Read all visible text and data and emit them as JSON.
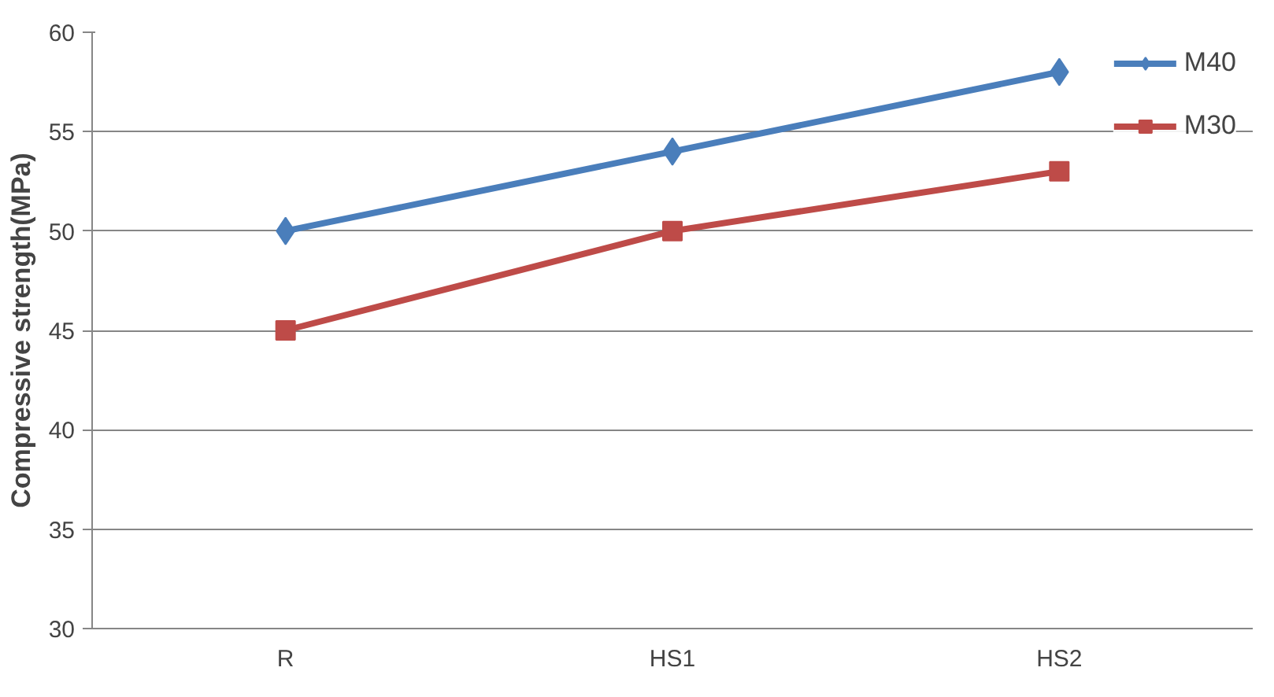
{
  "chart_data": {
    "type": "line",
    "ylabel": "Compressive strength(MPa)",
    "categories": [
      "R",
      "HS1",
      "HS2"
    ],
    "series": [
      {
        "name": "M40",
        "color": "#4a7ebb",
        "values": [
          50,
          54,
          58
        ],
        "marker": "diamond"
      },
      {
        "name": "M30",
        "color": "#be4b48",
        "values": [
          45,
          50,
          53
        ],
        "marker": "square"
      }
    ],
    "ylim": [
      30,
      60
    ],
    "yticks": [
      30,
      35,
      40,
      45,
      50,
      55,
      60
    ],
    "grid": "y",
    "legend": "top right",
    "line_style": "solid"
  }
}
